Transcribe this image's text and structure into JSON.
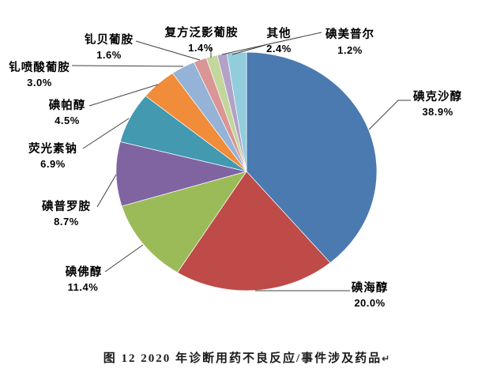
{
  "figure": {
    "caption": "图 12  2020 年诊断用药不良反应/事件涉及药品",
    "return_mark": "↵"
  },
  "chart_data": {
    "type": "pie",
    "title": "图 12  2020 年诊断用药不良反应/事件涉及药品",
    "unit": "%",
    "direction": "clockwise",
    "start_angle_deg": 0,
    "legend": "none",
    "label_style": "outside-with-leader-lines",
    "background": "#ffffff",
    "slices": [
      {
        "label": "碘克沙醇",
        "value": 38.9,
        "display": "38.9%",
        "color": "#4A7AB0"
      },
      {
        "label": "碘海醇",
        "value": 20.0,
        "display": "20.0%",
        "color": "#BE4B48"
      },
      {
        "label": "碘佛醇",
        "value": 11.4,
        "display": "11.4%",
        "color": "#9BBB59"
      },
      {
        "label": "碘普罗胺",
        "value": 8.7,
        "display": "8.7%",
        "color": "#8064A2"
      },
      {
        "label": "荧光素钠",
        "value": 6.9,
        "display": "6.9%",
        "color": "#4299B0"
      },
      {
        "label": "碘帕醇",
        "value": 4.5,
        "display": "4.5%",
        "color": "#F08C3A"
      },
      {
        "label": "钆喷酸葡胺",
        "value": 3.0,
        "display": "3.0%",
        "color": "#95B3D7"
      },
      {
        "label": "钆贝葡胺",
        "value": 1.6,
        "display": "1.6%",
        "color": "#D99694"
      },
      {
        "label": "复方泛影葡胺",
        "value": 1.4,
        "display": "1.4%",
        "color": "#C3D69B"
      },
      {
        "label": "碘美普尔",
        "value": 1.2,
        "display": "1.2%",
        "color": "#B3A2C7"
      },
      {
        "label": "其他",
        "value": 2.4,
        "display": "2.4%",
        "color": "#92CDDC"
      }
    ]
  }
}
